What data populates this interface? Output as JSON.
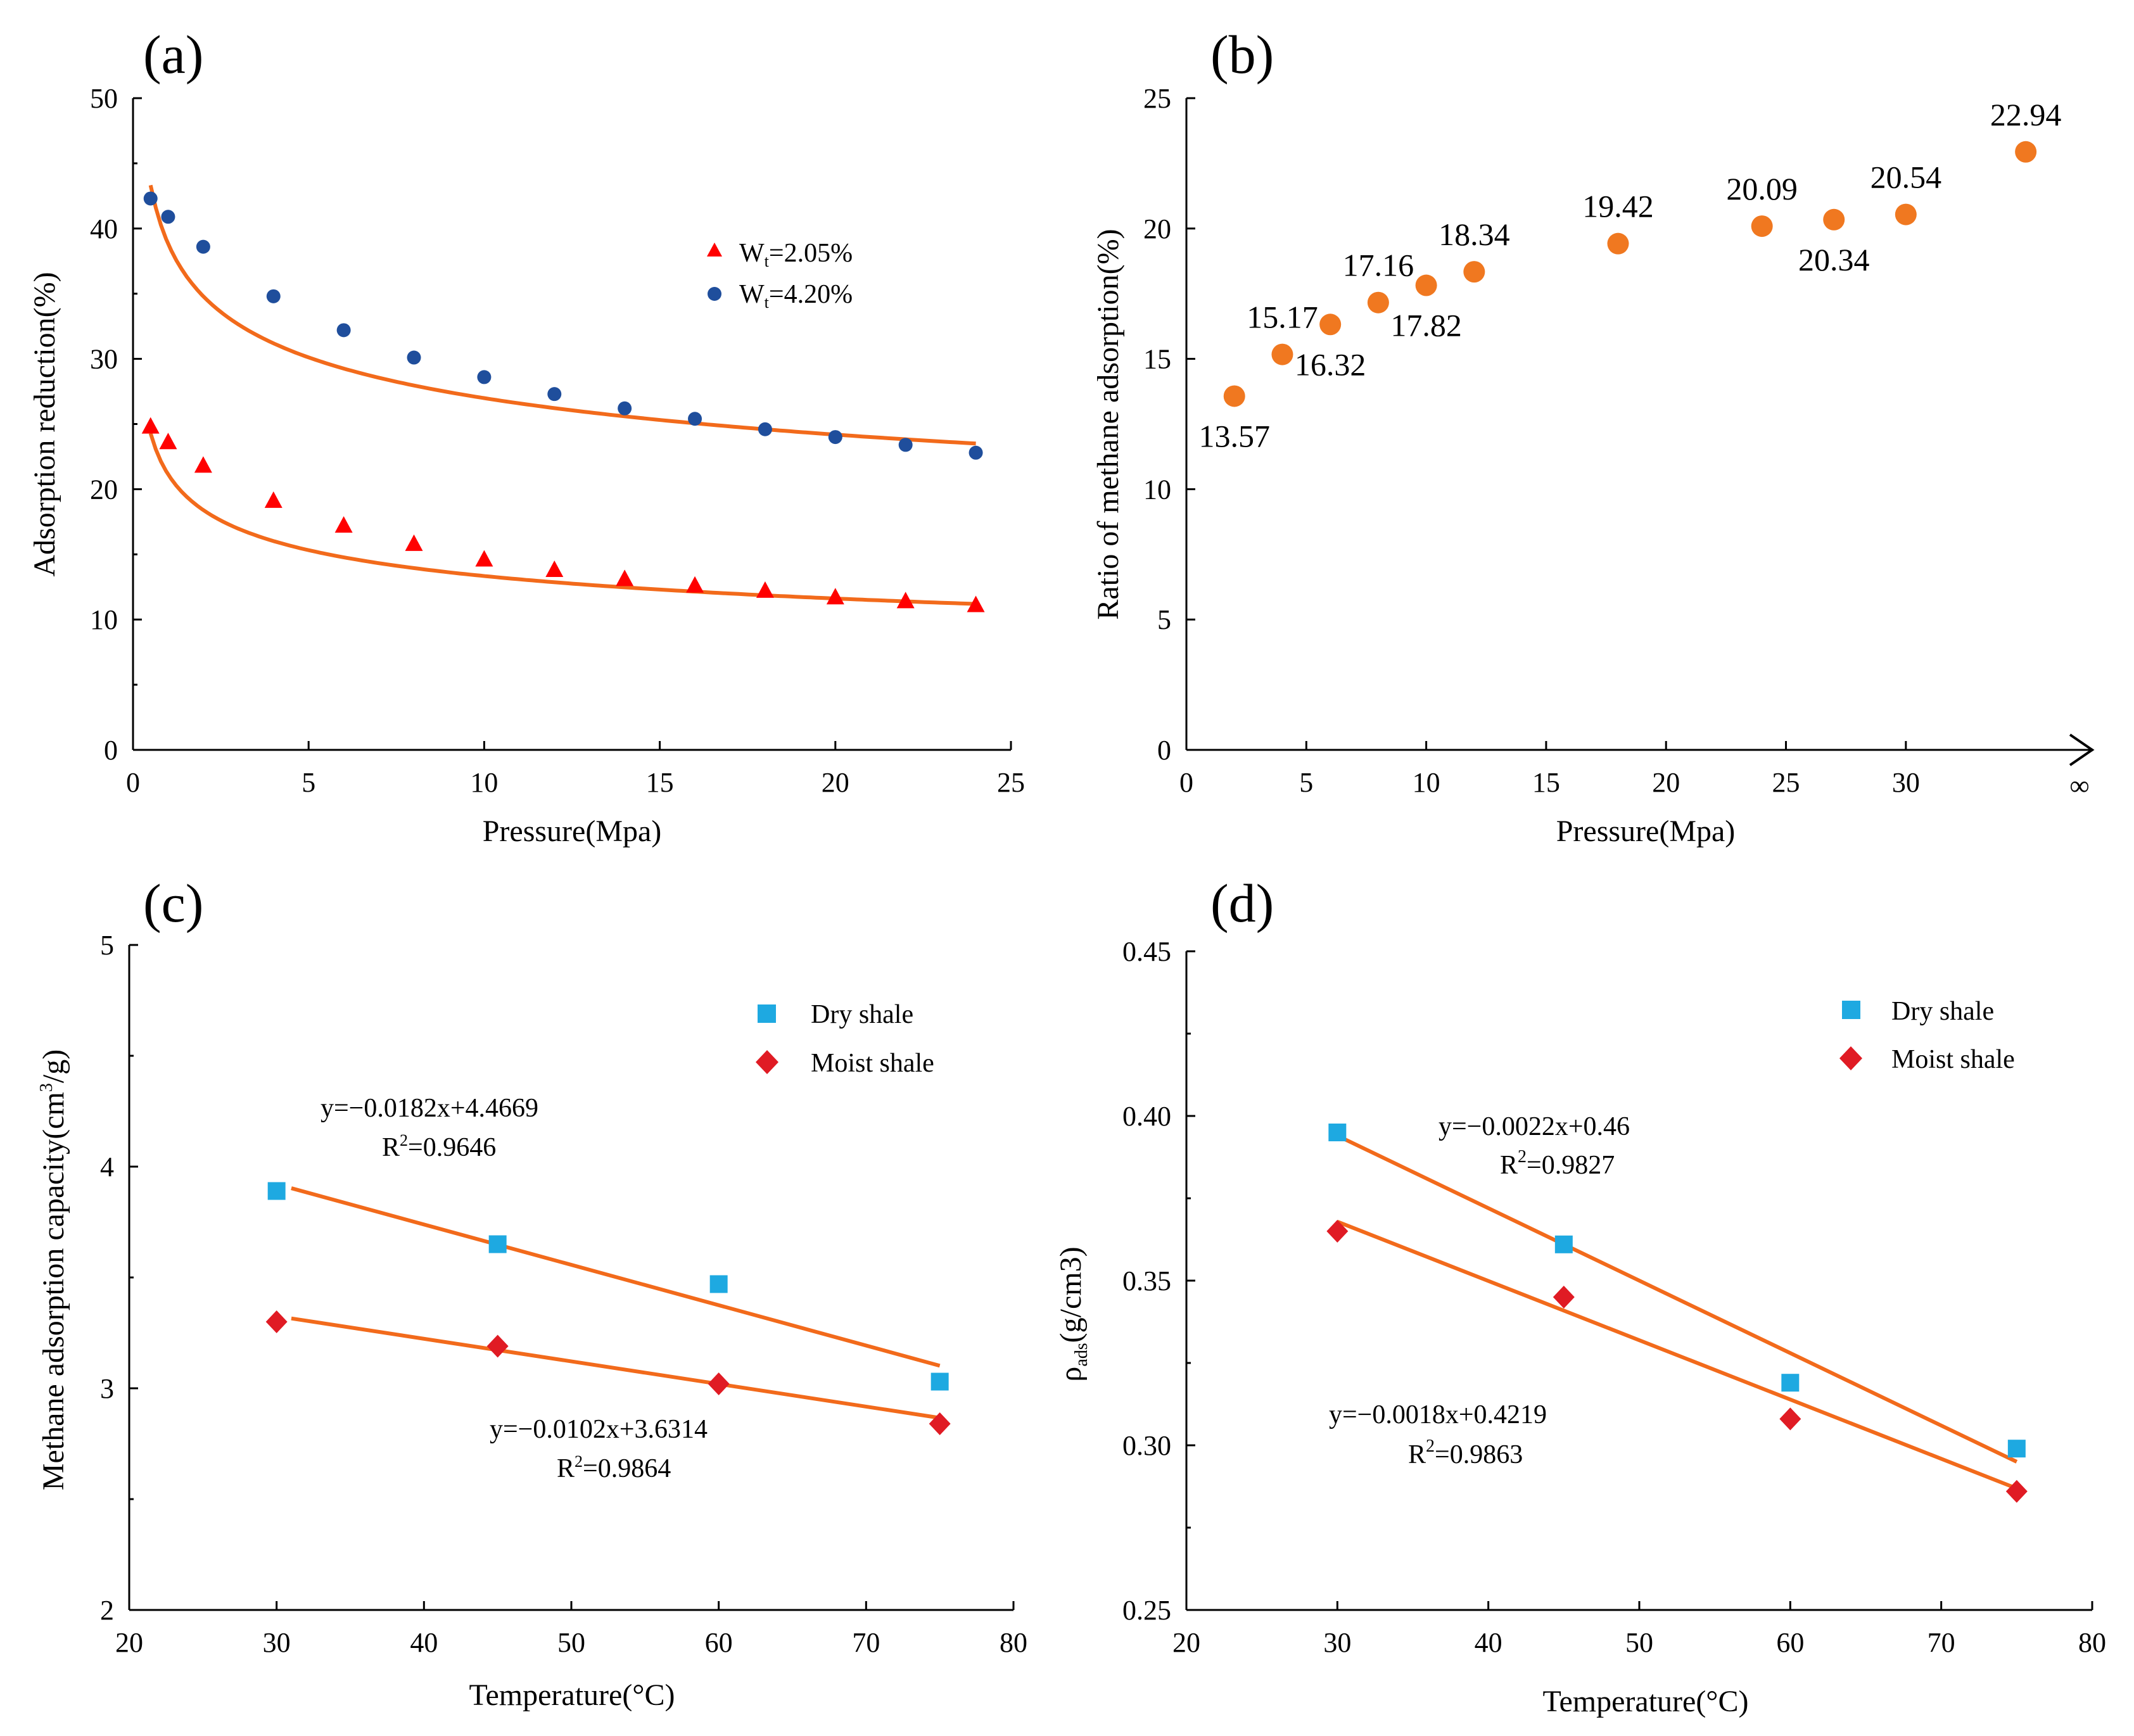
{
  "colors": {
    "fit_line": "#f26a1b",
    "red_triangle": "#ff0000",
    "blue_dot": "#1f4e9c",
    "orange_dot": "#f07820",
    "dry_shale": "#1ea9e1",
    "moist_shale": "#e01b24"
  },
  "chart_data": [
    {
      "panel": "(a)",
      "type": "scatter",
      "xlabel": "Pressure(Mpa)",
      "ylabel": "Adsorption reduction(%)",
      "xlim": [
        0,
        25
      ],
      "ylim": [
        0,
        50
      ],
      "xticks": [
        0,
        5,
        10,
        15,
        20,
        25
      ],
      "yticks": [
        0,
        10,
        20,
        30,
        40,
        50
      ],
      "legend": [
        {
          "base": "W",
          "sub": "t",
          "rest": "=2.05%"
        },
        {
          "base": "W",
          "sub": "t",
          "rest": "=4.20%"
        }
      ],
      "series": [
        {
          "name": "Wt=2.05%",
          "marker": "triangle",
          "color": "#ff0000",
          "x": [
            0.5,
            1,
            2,
            4,
            6,
            8,
            10,
            12,
            14,
            16,
            18,
            20,
            22,
            24
          ],
          "y": [
            24.8,
            23.6,
            21.8,
            19.1,
            17.2,
            15.8,
            14.6,
            13.8,
            13.1,
            12.6,
            12.2,
            11.7,
            11.4,
            11.1
          ]
        },
        {
          "name": "Wt=4.20%",
          "marker": "circle",
          "color": "#1f4e9c",
          "x": [
            0.5,
            1,
            2,
            4,
            6,
            8,
            10,
            12,
            14,
            16,
            18,
            20,
            22,
            24
          ],
          "y": [
            42.3,
            40.9,
            38.6,
            34.8,
            32.2,
            30.1,
            28.6,
            27.3,
            26.2,
            25.4,
            24.6,
            24.0,
            23.4,
            22.8
          ]
        }
      ],
      "fits": [
        {
          "type": "power",
          "a": 21.14,
          "b": -0.2,
          "from": 0.5,
          "to": 24
        },
        {
          "type": "power",
          "a": 38.83,
          "b": -0.158,
          "from": 0.5,
          "to": 24
        }
      ]
    },
    {
      "panel": "(b)",
      "type": "scatter",
      "xlabel": "Pressure(Mpa)",
      "ylabel": "Ratio of methane adsorption(%)",
      "xlim": [
        0,
        36
      ],
      "ylim": [
        0,
        25
      ],
      "xticks": [
        0,
        5,
        10,
        15,
        20,
        25,
        30
      ],
      "yticks": [
        0,
        5,
        10,
        15,
        20,
        25
      ],
      "xend_label": "∞",
      "points": [
        {
          "x": 2,
          "y": 13.57,
          "label": "13.57",
          "pos": "below"
        },
        {
          "x": 4,
          "y": 15.17,
          "label": "15.17",
          "pos": "above"
        },
        {
          "x": 6,
          "y": 16.32,
          "label": "16.32",
          "pos": "below"
        },
        {
          "x": 8,
          "y": 17.16,
          "label": "17.16",
          "pos": "above"
        },
        {
          "x": 10,
          "y": 17.82,
          "label": "17.82",
          "pos": "below"
        },
        {
          "x": 12,
          "y": 18.34,
          "label": "18.34",
          "pos": "above"
        },
        {
          "x": 18,
          "y": 19.42,
          "label": "19.42",
          "pos": "above"
        },
        {
          "x": 24,
          "y": 20.09,
          "label": "20.09",
          "pos": "above"
        },
        {
          "x": 27,
          "y": 20.34,
          "label": "20.34",
          "pos": "below"
        },
        {
          "x": 30,
          "y": 20.54,
          "label": "20.54",
          "pos": "above"
        },
        {
          "x": 35,
          "y": 22.94,
          "label": "22.94",
          "pos": "above"
        }
      ]
    },
    {
      "panel": "(c)",
      "type": "scatter",
      "xlabel": "Temperature(°C)",
      "ylabel": {
        "base": "Methane adsorption capacity(cm",
        "sup": "3",
        "rest": "/g)"
      },
      "xlim": [
        20,
        80
      ],
      "ylim": [
        2,
        5
      ],
      "xticks": [
        20,
        30,
        40,
        50,
        60,
        70,
        80
      ],
      "yticks": [
        2,
        3,
        4,
        5
      ],
      "legend": [
        "Dry shale",
        "Moist shale"
      ],
      "series": [
        {
          "name": "Dry shale",
          "marker": "square",
          "color": "#1ea9e1",
          "x": [
            30,
            45,
            60,
            75
          ],
          "y": [
            3.89,
            3.65,
            3.47,
            3.03
          ]
        },
        {
          "name": "Moist shale",
          "marker": "diamond",
          "color": "#e01b24",
          "x": [
            30,
            45,
            60,
            75
          ],
          "y": [
            3.3,
            3.19,
            3.02,
            2.84
          ]
        }
      ],
      "fits": [
        {
          "slope": -0.0182,
          "intercept": 4.4669,
          "from": 31,
          "to": 75
        },
        {
          "slope": -0.0102,
          "intercept": 3.6314,
          "from": 31,
          "to": 75
        }
      ],
      "equations": [
        {
          "eq": "y=−0.0182x+4.4669",
          "r2_base": "R",
          "r2_sup": "2",
          "r2_rest": "=0.9646"
        },
        {
          "eq": "y=−0.0102x+3.6314",
          "r2_base": "R",
          "r2_sup": "2",
          "r2_rest": "=0.9864"
        }
      ]
    },
    {
      "panel": "(d)",
      "type": "scatter",
      "xlabel": "Temperature(°C)",
      "ylabel": {
        "base": "ρ",
        "sub": "ads",
        "rest": "(g/cm3)"
      },
      "xlim": [
        20,
        80
      ],
      "ylim": [
        0.25,
        0.45
      ],
      "xticks": [
        20,
        30,
        40,
        50,
        60,
        70,
        80
      ],
      "yticks": [
        "0.25",
        "0.30",
        "0.35",
        "0.40",
        "0.45"
      ],
      "legend": [
        "Dry shale",
        "Moist shale"
      ],
      "series": [
        {
          "name": "Dry shale",
          "marker": "square",
          "color": "#1ea9e1",
          "x": [
            30,
            45,
            60,
            75
          ],
          "y": [
            0.395,
            0.361,
            0.319,
            0.299
          ]
        },
        {
          "name": "Moist shale",
          "marker": "diamond",
          "color": "#e01b24",
          "x": [
            30,
            45,
            60,
            75
          ],
          "y": [
            0.365,
            0.345,
            0.308,
            0.286
          ]
        }
      ],
      "fits": [
        {
          "slope": -0.0022,
          "intercept": 0.46,
          "from": 30,
          "to": 75
        },
        {
          "slope": -0.0018,
          "intercept": 0.4219,
          "from": 30,
          "to": 75
        }
      ],
      "equations": [
        {
          "eq": "y=−0.0022x+0.46",
          "r2_base": "R",
          "r2_sup": "2",
          "r2_rest": "=0.9827"
        },
        {
          "eq": "y=−0.0018x+0.4219",
          "r2_base": "R",
          "r2_sup": "2",
          "r2_rest": "=0.9863"
        }
      ]
    }
  ]
}
